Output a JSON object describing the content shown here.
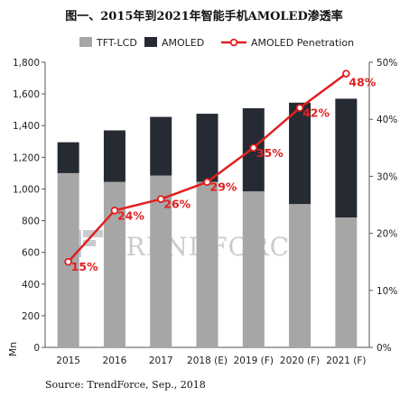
{
  "title": "图一、2015年到2021年智能手机AMOLED渗透率",
  "source": "Source: TrendForce, Sep., 2018",
  "watermark": "TRENDFORCE",
  "y_unit_label": "Mn",
  "colors": {
    "tft": "#a6a6a6",
    "amoled": "#262b33",
    "penetration": "#e02020"
  },
  "chart_data": {
    "type": "bar",
    "stacked": true,
    "categories": [
      "2015",
      "2016",
      "2017",
      "2018 (E)",
      "2019 (F)",
      "2020 (F)",
      "2021 (F)"
    ],
    "series": [
      {
        "name": "TFT-LCD",
        "values": [
          1100,
          1045,
          1085,
          1045,
          985,
          905,
          820
        ],
        "axis": "left",
        "kind": "bar"
      },
      {
        "name": "AMOLED",
        "values": [
          195,
          325,
          370,
          430,
          525,
          640,
          750
        ],
        "axis": "left",
        "kind": "bar"
      },
      {
        "name": "AMOLED Penetration",
        "values": [
          15,
          24,
          26,
          29,
          35,
          42,
          48
        ],
        "axis": "right",
        "kind": "line"
      }
    ],
    "y_left": {
      "min": 0,
      "max": 1800,
      "ticks": [
        "0",
        "200",
        "400",
        "600",
        "800",
        "1,000",
        "1,200",
        "1,400",
        "1,600",
        "1,800"
      ]
    },
    "y_right": {
      "min": 0,
      "max": 50,
      "ticks": [
        "0%",
        "10%",
        "20%",
        "30%",
        "40%",
        "50%"
      ]
    },
    "penetration_labels": [
      "15%",
      "24%",
      "26%",
      "29%",
      "35%",
      "42%",
      "48%"
    ],
    "legend": [
      "TFT-LCD",
      "AMOLED",
      "AMOLED Penetration"
    ],
    "legend_position": "top",
    "grid": false
  }
}
